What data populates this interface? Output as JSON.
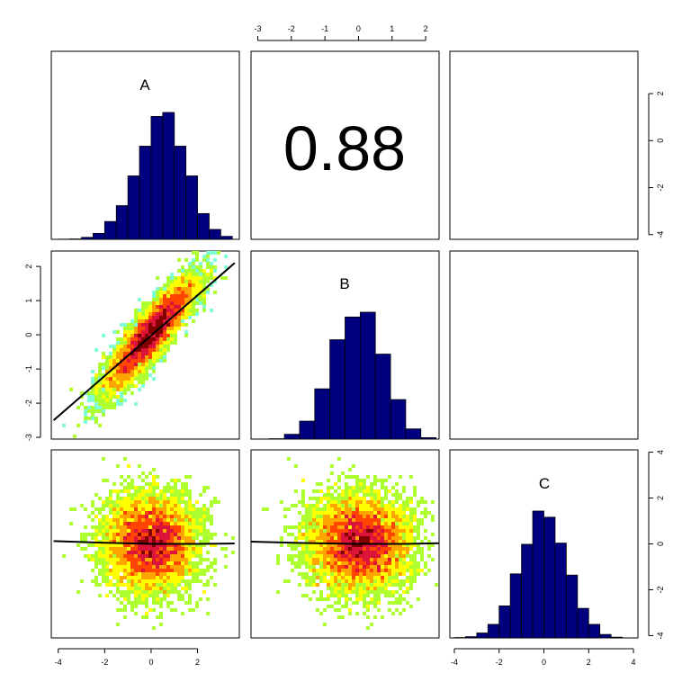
{
  "chart_data": {
    "type": "pairs",
    "variables": [
      "A",
      "B",
      "C"
    ],
    "colors": {
      "histogram_fill": "#00007F",
      "heatmap_ramp": [
        "#7FFFD4",
        "#ADFF2F",
        "#FFFF00",
        "#FFA500",
        "#FF4500",
        "#DC143C",
        "#800000"
      ]
    },
    "histograms": {
      "A": {
        "bin_edges": [
          -4,
          -3.5,
          -3,
          -2.5,
          -2,
          -1.5,
          -1,
          -0.5,
          0,
          0.5,
          1,
          1.5,
          2,
          2.5,
          3,
          3.5
        ],
        "counts": [
          1,
          2,
          10,
          30,
          90,
          170,
          320,
          470,
          620,
          640,
          470,
          320,
          130,
          50,
          15
        ]
      },
      "B": {
        "bin_edges": [
          -3.5,
          -3,
          -2.5,
          -2,
          -1.5,
          -1,
          -0.5,
          0,
          0.5,
          1,
          1.5,
          2,
          2.5
        ],
        "counts": [
          1,
          3,
          40,
          150,
          420,
          830,
          1020,
          1060,
          710,
          330,
          85,
          12
        ]
      },
      "C": {
        "bin_edges": [
          -4,
          -3.5,
          -3,
          -2.5,
          -2,
          -1.5,
          -1,
          -0.5,
          0,
          0.5,
          1,
          1.5,
          2,
          2.5,
          3,
          3.5
        ],
        "counts": [
          3,
          10,
          40,
          110,
          260,
          520,
          760,
          1030,
          980,
          770,
          510,
          240,
          110,
          28,
          6
        ]
      }
    },
    "correlations": [
      {
        "row": "A",
        "col": "B",
        "value": "0.88"
      }
    ],
    "scatter_panels": [
      {
        "x": "A",
        "y": "B",
        "fit": {
          "start": [
            -4.2,
            -2.5
          ],
          "end": [
            3.6,
            2.1
          ]
        }
      },
      {
        "x": "A",
        "y": "C",
        "fit_points": [
          [
            -4.2,
            0.12
          ],
          [
            -2,
            0.05
          ],
          [
            0,
            0.0
          ],
          [
            2,
            0.0
          ],
          [
            3.6,
            0.02
          ]
        ]
      },
      {
        "x": "B",
        "y": "C",
        "fit_points": [
          [
            -3.0,
            0.1
          ],
          [
            -1.5,
            0.04
          ],
          [
            0,
            0.0
          ],
          [
            1.5,
            0.0
          ],
          [
            2.5,
            0.03
          ]
        ]
      }
    ],
    "axes": {
      "top": {
        "variable": "B",
        "range": [
          -3.2,
          2.4
        ],
        "ticks": [
          "-3",
          "-2",
          "-1",
          "0",
          "1",
          "2"
        ]
      },
      "left": {
        "variable": "B",
        "range": [
          -3.05,
          2.45
        ],
        "ticks": [
          "-3",
          "-2",
          "-1",
          "0",
          "1",
          "2"
        ]
      },
      "bottom_A": {
        "variable": "A",
        "range": [
          -4.3,
          3.8
        ],
        "ticks": [
          "-4",
          "-2",
          "0",
          "2"
        ]
      },
      "bottom_C": {
        "variable": "C",
        "range": [
          -4.2,
          4.2
        ],
        "ticks": [
          "-4",
          "-2",
          "0",
          "2",
          "4"
        ]
      },
      "right_top": {
        "variable": "C",
        "range": [
          -4.2,
          3.8
        ],
        "ticks": [
          "-4",
          "-2",
          "0",
          "2"
        ]
      },
      "right_bottom": {
        "variable": "C",
        "range": [
          -4.1,
          4.1
        ],
        "ticks": [
          "-4",
          "-2",
          "0",
          "2",
          "4"
        ]
      }
    }
  }
}
